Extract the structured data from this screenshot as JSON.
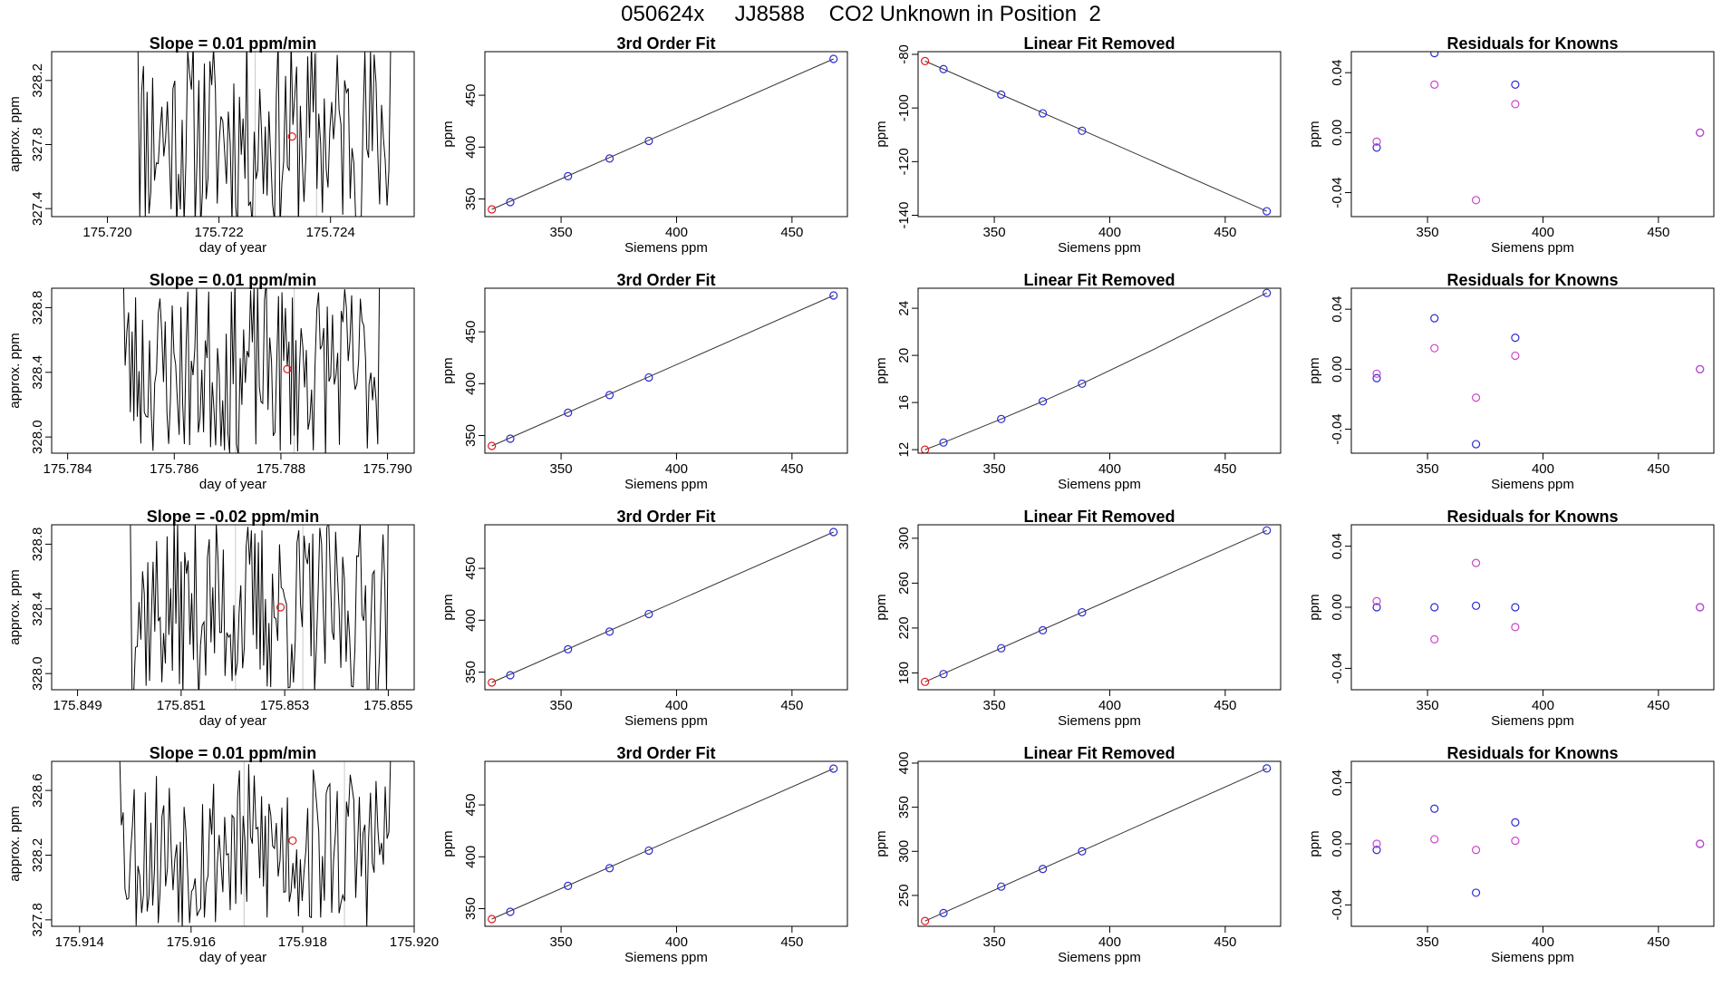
{
  "page": {
    "title": "050624x     JJ8588    CO2 Unknown in Position  2"
  },
  "colors": {
    "axis": "#000000",
    "line": "#000000",
    "unknown_point": "#e41a1c",
    "known_point": "#2b2bd6",
    "residual_alt": "#cc44cc",
    "fit_line": "#333333",
    "grid_marker": "#c8c8c8"
  },
  "chart_data": [
    {
      "type": "line",
      "title": "Slope =  0.01  ppm/min",
      "xlabel": "day of year",
      "ylabel": "approx. ppm",
      "xlim": [
        175.719,
        175.7255
      ],
      "ylim": [
        327.35,
        328.38
      ],
      "xticks": [
        175.72,
        175.722,
        175.724
      ],
      "xticklabels": [
        "175.720",
        "175.722",
        "175.724"
      ],
      "yticks": [
        327.4,
        327.8,
        328.2
      ],
      "yticklabels": [
        "327.4",
        "327.8",
        "328.2"
      ],
      "x_start": 175.72048,
      "x_end": 175.72508,
      "n": 140,
      "center": 327.86,
      "amp": 0.62,
      "seed": 11,
      "vmarks": [
        175.72265,
        175.72375
      ],
      "marker": {
        "x": 175.72331,
        "y": 327.85
      }
    },
    {
      "type": "scatter",
      "title": "3rd Order Fit",
      "xlabel": "Siemens ppm",
      "ylabel": "ppm",
      "xlim": [
        317,
        474
      ],
      "ylim": [
        333,
        492
      ],
      "xticks": [
        350,
        400,
        450
      ],
      "xticklabels": [
        "350",
        "400",
        "450"
      ],
      "yticks": [
        350,
        400,
        450
      ],
      "yticklabels": [
        "350",
        "400",
        "450"
      ],
      "fit_line": [
        [
          320,
          340
        ],
        [
          468,
          485
        ]
      ],
      "points": [
        {
          "x": 320,
          "y": 340,
          "kind": "unknown"
        },
        {
          "x": 328,
          "y": 347,
          "kind": "known"
        },
        {
          "x": 353,
          "y": 372,
          "kind": "known"
        },
        {
          "x": 371,
          "y": 389,
          "kind": "known"
        },
        {
          "x": 388,
          "y": 406,
          "kind": "known"
        },
        {
          "x": 468,
          "y": 485,
          "kind": "known"
        }
      ]
    },
    {
      "type": "scatter",
      "title": "Linear Fit Removed",
      "xlabel": "Siemens ppm",
      "ylabel": "ppm",
      "xlim": [
        317,
        474
      ],
      "ylim": [
        -140.5,
        -79
      ],
      "xticks": [
        350,
        400,
        450
      ],
      "xticklabels": [
        "350",
        "400",
        "450"
      ],
      "yticks": [
        -140,
        -120,
        -100,
        -80
      ],
      "yticklabels": [
        "-140",
        "-120",
        "-100",
        "-80"
      ],
      "fit_line": [
        [
          320,
          -82.5
        ],
        [
          468,
          -138.5
        ]
      ],
      "points": [
        {
          "x": 320,
          "y": -82.5,
          "kind": "unknown"
        },
        {
          "x": 328,
          "y": -85.5,
          "kind": "known"
        },
        {
          "x": 353,
          "y": -95,
          "kind": "known"
        },
        {
          "x": 371,
          "y": -102,
          "kind": "known"
        },
        {
          "x": 388,
          "y": -108.5,
          "kind": "known"
        },
        {
          "x": 468,
          "y": -138.5,
          "kind": "known"
        }
      ]
    },
    {
      "type": "scatter",
      "title": "Residuals for Knowns",
      "xlabel": "Siemens ppm",
      "ylabel": "ppm",
      "xlim": [
        317,
        474
      ],
      "ylim": [
        -0.056,
        0.054
      ],
      "xticks": [
        350,
        400,
        450
      ],
      "xticklabels": [
        "350",
        "400",
        "450"
      ],
      "yticks": [
        -0.04,
        0.0,
        0.04
      ],
      "yticklabels": [
        "-0.04",
        "0.00",
        "0.04"
      ],
      "points": [
        {
          "x": 328,
          "y": -0.01,
          "kind": "known"
        },
        {
          "x": 353,
          "y": 0.053,
          "kind": "known"
        },
        {
          "x": 388,
          "y": 0.032,
          "kind": "known"
        },
        {
          "x": 468,
          "y": 0.0,
          "kind": "known"
        },
        {
          "x": 328,
          "y": -0.006,
          "kind": "alt"
        },
        {
          "x": 353,
          "y": 0.032,
          "kind": "alt"
        },
        {
          "x": 371,
          "y": -0.045,
          "kind": "alt"
        },
        {
          "x": 388,
          "y": 0.019,
          "kind": "alt"
        },
        {
          "x": 468,
          "y": 0.0,
          "kind": "alt"
        }
      ]
    },
    {
      "type": "line",
      "title": "Slope =  0.01  ppm/min",
      "xlabel": "day of year",
      "ylabel": "approx. ppm",
      "xlim": [
        175.7837,
        175.7905
      ],
      "ylim": [
        327.9,
        328.92
      ],
      "xticks": [
        175.784,
        175.786,
        175.788,
        175.79
      ],
      "xticklabels": [
        "175.784",
        "175.786",
        "175.788",
        "175.790"
      ],
      "yticks": [
        328.0,
        328.4,
        328.8
      ],
      "yticklabels": [
        "328.0",
        "328.4",
        "328.8"
      ],
      "x_start": 175.78498,
      "x_end": 175.78985,
      "n": 150,
      "center": 328.42,
      "amp": 0.55,
      "seed": 23,
      "vmarks": [
        175.78715,
        175.78825
      ],
      "marker": {
        "x": 175.78812,
        "y": 328.42
      }
    },
    {
      "type": "scatter",
      "title": "3rd Order Fit",
      "xlabel": "Siemens ppm",
      "ylabel": "ppm",
      "xlim": [
        317,
        474
      ],
      "ylim": [
        333,
        492
      ],
      "xticks": [
        350,
        400,
        450
      ],
      "xticklabels": [
        "350",
        "400",
        "450"
      ],
      "yticks": [
        350,
        400,
        450
      ],
      "yticklabels": [
        "350",
        "400",
        "450"
      ],
      "fit_line": [
        [
          320,
          340
        ],
        [
          468,
          485
        ]
      ],
      "points": [
        {
          "x": 320,
          "y": 340,
          "kind": "unknown"
        },
        {
          "x": 328,
          "y": 347,
          "kind": "known"
        },
        {
          "x": 353,
          "y": 372,
          "kind": "known"
        },
        {
          "x": 371,
          "y": 389,
          "kind": "known"
        },
        {
          "x": 388,
          "y": 406,
          "kind": "known"
        },
        {
          "x": 468,
          "y": 485,
          "kind": "known"
        }
      ]
    },
    {
      "type": "scatter",
      "title": "Linear Fit Removed",
      "xlabel": "Siemens ppm",
      "ylabel": "ppm",
      "xlim": [
        317,
        474
      ],
      "ylim": [
        11.7,
        25.7
      ],
      "xticks": [
        350,
        400,
        450
      ],
      "xticklabels": [
        "350",
        "400",
        "450"
      ],
      "yticks": [
        12,
        16,
        20,
        24
      ],
      "yticklabels": [
        "12",
        "16",
        "20",
        "24"
      ],
      "fit_curve": [
        [
          320,
          12.0
        ],
        [
          328,
          12.6
        ],
        [
          353,
          14.6
        ],
        [
          371,
          16.1
        ],
        [
          388,
          17.6
        ],
        [
          420,
          20.6
        ],
        [
          468,
          25.3
        ]
      ],
      "points": [
        {
          "x": 320,
          "y": 12.0,
          "kind": "unknown"
        },
        {
          "x": 328,
          "y": 12.6,
          "kind": "known"
        },
        {
          "x": 353,
          "y": 14.6,
          "kind": "known"
        },
        {
          "x": 371,
          "y": 16.1,
          "kind": "known"
        },
        {
          "x": 388,
          "y": 17.6,
          "kind": "known"
        },
        {
          "x": 468,
          "y": 25.3,
          "kind": "known"
        }
      ]
    },
    {
      "type": "scatter",
      "title": "Residuals for Knowns",
      "xlabel": "Siemens ppm",
      "ylabel": "ppm",
      "xlim": [
        317,
        474
      ],
      "ylim": [
        -0.056,
        0.054
      ],
      "xticks": [
        350,
        400,
        450
      ],
      "xticklabels": [
        "350",
        "400",
        "450"
      ],
      "yticks": [
        -0.04,
        0.0,
        0.04
      ],
      "yticklabels": [
        "-0.04",
        "0.00",
        "0.04"
      ],
      "points": [
        {
          "x": 328,
          "y": -0.006,
          "kind": "known"
        },
        {
          "x": 353,
          "y": 0.034,
          "kind": "known"
        },
        {
          "x": 371,
          "y": -0.05,
          "kind": "known"
        },
        {
          "x": 388,
          "y": 0.021,
          "kind": "known"
        },
        {
          "x": 468,
          "y": 0.0,
          "kind": "known"
        },
        {
          "x": 328,
          "y": -0.003,
          "kind": "alt"
        },
        {
          "x": 353,
          "y": 0.014,
          "kind": "alt"
        },
        {
          "x": 371,
          "y": -0.019,
          "kind": "alt"
        },
        {
          "x": 388,
          "y": 0.009,
          "kind": "alt"
        },
        {
          "x": 468,
          "y": 0.0,
          "kind": "alt"
        }
      ]
    },
    {
      "type": "line",
      "title": "Slope =  -0.02  ppm/min",
      "xlabel": "day of year",
      "ylabel": "approx. ppm",
      "xlim": [
        175.8485,
        175.8555
      ],
      "ylim": [
        327.9,
        328.92
      ],
      "xticks": [
        175.849,
        175.851,
        175.853,
        175.855
      ],
      "xticklabels": [
        "175.849",
        "175.851",
        "175.853",
        "175.855"
      ],
      "yticks": [
        328.0,
        328.4,
        328.8
      ],
      "yticklabels": [
        "328.0",
        "328.4",
        "328.8"
      ],
      "x_start": 175.84995,
      "x_end": 175.855,
      "n": 150,
      "center": 328.4,
      "amp": 0.56,
      "seed": 37,
      "vmarks": [
        175.85205,
        175.85335
      ],
      "marker": {
        "x": 175.85292,
        "y": 328.41
      }
    },
    {
      "type": "scatter",
      "title": "3rd Order Fit",
      "xlabel": "Siemens ppm",
      "ylabel": "ppm",
      "xlim": [
        317,
        474
      ],
      "ylim": [
        333,
        492
      ],
      "xticks": [
        350,
        400,
        450
      ],
      "xticklabels": [
        "350",
        "400",
        "450"
      ],
      "yticks": [
        350,
        400,
        450
      ],
      "yticklabels": [
        "350",
        "400",
        "450"
      ],
      "fit_line": [
        [
          320,
          340
        ],
        [
          468,
          485
        ]
      ],
      "points": [
        {
          "x": 320,
          "y": 340,
          "kind": "unknown"
        },
        {
          "x": 328,
          "y": 347,
          "kind": "known"
        },
        {
          "x": 353,
          "y": 372,
          "kind": "known"
        },
        {
          "x": 371,
          "y": 389,
          "kind": "known"
        },
        {
          "x": 388,
          "y": 406,
          "kind": "known"
        },
        {
          "x": 468,
          "y": 485,
          "kind": "known"
        }
      ]
    },
    {
      "type": "scatter",
      "title": "Linear Fit Removed",
      "xlabel": "Siemens ppm",
      "ylabel": "ppm",
      "xlim": [
        317,
        474
      ],
      "ylim": [
        165,
        312
      ],
      "xticks": [
        350,
        400,
        450
      ],
      "xticklabels": [
        "350",
        "400",
        "450"
      ],
      "yticks": [
        180,
        220,
        260,
        300
      ],
      "yticklabels": [
        "180",
        "220",
        "260",
        "300"
      ],
      "fit_line": [
        [
          320,
          172
        ],
        [
          468,
          307
        ]
      ],
      "points": [
        {
          "x": 320,
          "y": 172,
          "kind": "unknown"
        },
        {
          "x": 328,
          "y": 179,
          "kind": "known"
        },
        {
          "x": 353,
          "y": 202,
          "kind": "known"
        },
        {
          "x": 371,
          "y": 218,
          "kind": "known"
        },
        {
          "x": 388,
          "y": 234,
          "kind": "known"
        },
        {
          "x": 468,
          "y": 307,
          "kind": "known"
        }
      ]
    },
    {
      "type": "scatter",
      "title": "Residuals for Knowns",
      "xlabel": "Siemens ppm",
      "ylabel": "ppm",
      "xlim": [
        317,
        474
      ],
      "ylim": [
        -0.054,
        0.054
      ],
      "xticks": [
        350,
        400,
        450
      ],
      "xticklabels": [
        "350",
        "400",
        "450"
      ],
      "yticks": [
        -0.04,
        0.0,
        0.04
      ],
      "yticklabels": [
        "-0.04",
        "0.00",
        "0.04"
      ],
      "points": [
        {
          "x": 328,
          "y": 0.0,
          "kind": "known"
        },
        {
          "x": 353,
          "y": 0.0,
          "kind": "known"
        },
        {
          "x": 371,
          "y": 0.001,
          "kind": "known"
        },
        {
          "x": 388,
          "y": 0.0,
          "kind": "known"
        },
        {
          "x": 468,
          "y": 0.0,
          "kind": "known"
        },
        {
          "x": 328,
          "y": 0.004,
          "kind": "alt"
        },
        {
          "x": 353,
          "y": -0.021,
          "kind": "alt"
        },
        {
          "x": 371,
          "y": 0.029,
          "kind": "alt"
        },
        {
          "x": 388,
          "y": -0.013,
          "kind": "alt"
        },
        {
          "x": 468,
          "y": 0.0,
          "kind": "alt"
        }
      ]
    },
    {
      "type": "line",
      "title": "Slope =  0.01  ppm/min",
      "xlabel": "day of year",
      "ylabel": "approx. ppm",
      "xlim": [
        175.9135,
        175.92
      ],
      "ylim": [
        327.76,
        328.78
      ],
      "xticks": [
        175.914,
        175.916,
        175.918,
        175.92
      ],
      "xticklabels": [
        "175.914",
        "175.916",
        "175.918",
        "175.920"
      ],
      "yticks": [
        327.8,
        328.2,
        328.6
      ],
      "yticklabels": [
        "327.8",
        "328.2",
        "328.6"
      ],
      "x_start": 175.91465,
      "x_end": 175.91958,
      "n": 150,
      "center": 328.25,
      "amp": 0.52,
      "seed": 53,
      "vmarks": [
        175.91695,
        175.91875
      ],
      "marker": {
        "x": 175.91782,
        "y": 328.29
      }
    },
    {
      "type": "scatter",
      "title": "3rd Order Fit",
      "xlabel": "Siemens ppm",
      "ylabel": "ppm",
      "xlim": [
        317,
        474
      ],
      "ylim": [
        333,
        492
      ],
      "xticks": [
        350,
        400,
        450
      ],
      "xticklabels": [
        "350",
        "400",
        "450"
      ],
      "yticks": [
        350,
        400,
        450
      ],
      "yticklabels": [
        "350",
        "400",
        "450"
      ],
      "fit_line": [
        [
          320,
          340
        ],
        [
          468,
          485
        ]
      ],
      "points": [
        {
          "x": 320,
          "y": 340,
          "kind": "unknown"
        },
        {
          "x": 328,
          "y": 347,
          "kind": "known"
        },
        {
          "x": 353,
          "y": 372,
          "kind": "known"
        },
        {
          "x": 371,
          "y": 389,
          "kind": "known"
        },
        {
          "x": 388,
          "y": 406,
          "kind": "known"
        },
        {
          "x": 468,
          "y": 485,
          "kind": "known"
        }
      ]
    },
    {
      "type": "scatter",
      "title": "Linear Fit Removed",
      "xlabel": "Siemens ppm",
      "ylabel": "ppm",
      "xlim": [
        317,
        474
      ],
      "ylim": [
        215,
        402
      ],
      "xticks": [
        350,
        400,
        450
      ],
      "xticklabels": [
        "350",
        "400",
        "450"
      ],
      "yticks": [
        250,
        300,
        350,
        400
      ],
      "yticklabels": [
        "250",
        "300",
        "350",
        "400"
      ],
      "fit_line": [
        [
          320,
          221
        ],
        [
          468,
          394
        ]
      ],
      "points": [
        {
          "x": 320,
          "y": 221,
          "kind": "unknown"
        },
        {
          "x": 328,
          "y": 230,
          "kind": "known"
        },
        {
          "x": 353,
          "y": 260,
          "kind": "known"
        },
        {
          "x": 371,
          "y": 280,
          "kind": "known"
        },
        {
          "x": 388,
          "y": 300,
          "kind": "known"
        },
        {
          "x": 468,
          "y": 394,
          "kind": "known"
        }
      ]
    },
    {
      "type": "scatter",
      "title": "Residuals for Knowns",
      "xlabel": "Siemens ppm",
      "ylabel": "ppm",
      "xlim": [
        317,
        474
      ],
      "ylim": [
        -0.054,
        0.054
      ],
      "xticks": [
        350,
        400,
        450
      ],
      "xticklabels": [
        "350",
        "400",
        "450"
      ],
      "yticks": [
        -0.04,
        0.0,
        0.04
      ],
      "yticklabels": [
        "-0.04",
        "0.00",
        "0.04"
      ],
      "points": [
        {
          "x": 328,
          "y": -0.004,
          "kind": "known"
        },
        {
          "x": 353,
          "y": 0.023,
          "kind": "known"
        },
        {
          "x": 371,
          "y": -0.032,
          "kind": "known"
        },
        {
          "x": 388,
          "y": 0.014,
          "kind": "known"
        },
        {
          "x": 468,
          "y": 0.0,
          "kind": "known"
        },
        {
          "x": 328,
          "y": 0.0,
          "kind": "alt"
        },
        {
          "x": 353,
          "y": 0.003,
          "kind": "alt"
        },
        {
          "x": 371,
          "y": -0.004,
          "kind": "alt"
        },
        {
          "x": 388,
          "y": 0.002,
          "kind": "alt"
        },
        {
          "x": 468,
          "y": 0.0,
          "kind": "alt"
        }
      ]
    }
  ]
}
